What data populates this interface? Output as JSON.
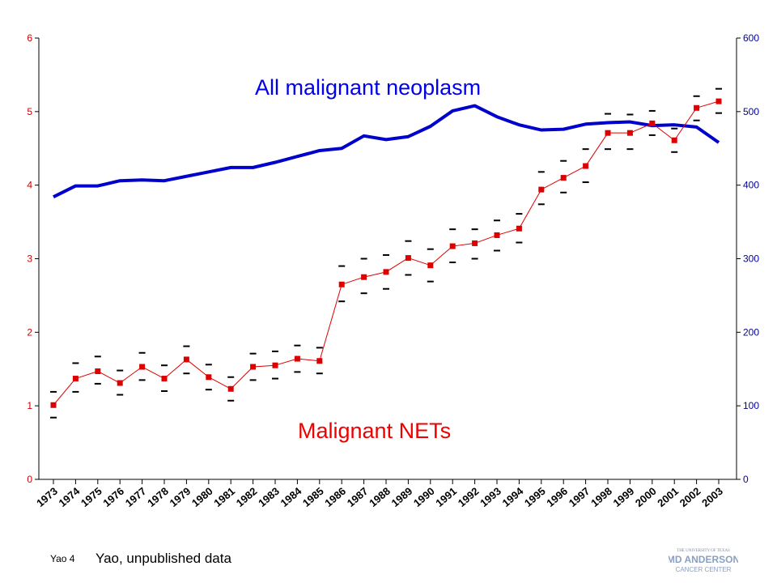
{
  "footer": {
    "slide_id": "Yao 4",
    "note": "Yao, unpublished data",
    "logo_text": [
      "THE UNIVERSITY OF TEXAS",
      "MD ANDERSON",
      "CANCER CENTER"
    ]
  },
  "chart_data": {
    "type": "line",
    "title": "",
    "xlabel": "",
    "ylabel": "",
    "y2label": "",
    "x": [
      1973,
      1974,
      1975,
      1976,
      1977,
      1978,
      1979,
      1980,
      1981,
      1982,
      1983,
      1984,
      1985,
      1986,
      1987,
      1988,
      1989,
      1990,
      1991,
      1992,
      1993,
      1994,
      1995,
      1996,
      1997,
      1998,
      1999,
      2000,
      2001,
      2002,
      2003
    ],
    "ylim": [
      0,
      6
    ],
    "y2lim": [
      0,
      600
    ],
    "yticks": [
      0,
      1,
      2,
      3,
      4,
      5,
      6
    ],
    "y2ticks": [
      0,
      100,
      200,
      300,
      400,
      500,
      600
    ],
    "grid": false,
    "annotations": [
      "All malignant neoplasm",
      "Malignant NETs"
    ],
    "series": [
      {
        "name": "All malignant neoplasm",
        "axis": "right",
        "color": "#0000cc",
        "values": [
          384,
          399,
          399,
          406,
          407,
          406,
          412,
          418,
          424,
          424,
          431,
          439,
          447,
          450,
          467,
          462,
          466,
          480,
          501,
          508,
          493,
          482,
          475,
          476,
          483,
          485,
          486,
          481,
          482,
          479,
          458
        ]
      },
      {
        "name": "Malignant NETs",
        "axis": "left",
        "color": "#dd0000",
        "values": [
          1.01,
          1.37,
          1.47,
          1.31,
          1.53,
          1.37,
          1.63,
          1.39,
          1.23,
          1.53,
          1.55,
          1.64,
          1.61,
          2.65,
          2.75,
          2.82,
          3.01,
          2.91,
          3.17,
          3.21,
          3.32,
          3.41,
          3.94,
          4.1,
          4.26,
          4.71,
          4.71,
          4.84,
          4.61,
          5.05,
          5.14
        ],
        "upper": [
          1.19,
          1.58,
          1.67,
          1.48,
          1.72,
          1.55,
          1.81,
          1.56,
          1.39,
          1.71,
          1.74,
          1.82,
          1.79,
          2.9,
          3.0,
          3.05,
          3.24,
          3.13,
          3.4,
          3.4,
          3.52,
          3.61,
          4.18,
          4.33,
          4.49,
          4.97,
          4.96,
          5.01,
          4.77,
          5.21,
          5.31
        ],
        "lower": [
          0.84,
          1.19,
          1.3,
          1.15,
          1.35,
          1.2,
          1.44,
          1.22,
          1.07,
          1.35,
          1.37,
          1.46,
          1.44,
          2.42,
          2.53,
          2.59,
          2.78,
          2.69,
          2.95,
          3.0,
          3.11,
          3.22,
          3.74,
          3.9,
          4.04,
          4.49,
          4.49,
          4.68,
          4.45,
          4.88,
          4.98
        ]
      }
    ]
  }
}
